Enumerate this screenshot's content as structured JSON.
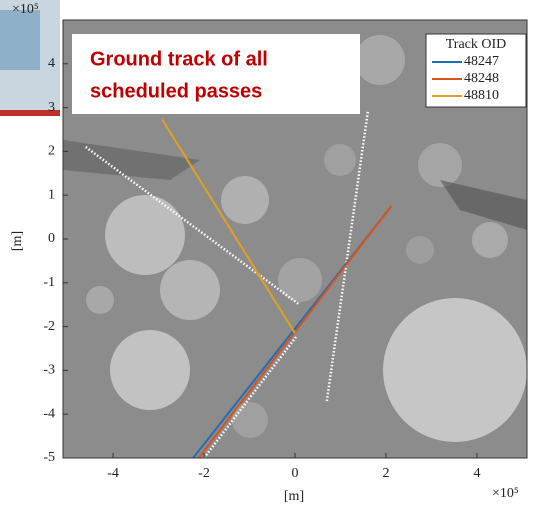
{
  "chart_data": {
    "type": "line",
    "annotation": [
      "Ground track of all",
      "scheduled passes"
    ],
    "x_multiplier": "×10⁵",
    "y_multiplier": "×10⁵",
    "xlabel": "[m]",
    "ylabel": "[m]",
    "xlim": [
      -5.1,
      5.1
    ],
    "ylim": [
      -5,
      5
    ],
    "xticks": [
      -4,
      -2,
      0,
      2,
      4
    ],
    "yticks": [
      -5,
      -4,
      -3,
      -2,
      -1,
      0,
      1,
      2,
      3,
      4
    ],
    "legend_title": "Track OID",
    "legend_loc": "upper right",
    "series": [
      {
        "name": "48247",
        "color": "#1f6fb8",
        "x": [
          -2.24,
          2.09
        ],
        "y": [
          -5,
          0.71
        ]
      },
      {
        "name": "48248",
        "color": "#d9541a",
        "x": [
          -2.12,
          2.12
        ],
        "y": [
          -5,
          0.76
        ]
      },
      {
        "name": "48810",
        "color": "#e0a020",
        "x": [
          -2.92,
          0
        ],
        "y": [
          2.73,
          -2.15
        ]
      }
    ],
    "other_tracks": [
      {
        "color": "#ffffff",
        "x": [
          -4.6,
          0.1
        ],
        "y": [
          2.1,
          -1.5
        ]
      },
      {
        "color": "#ffffff",
        "x": [
          1.6,
          0.7
        ],
        "y": [
          2.9,
          -3.7
        ]
      },
      {
        "color": "#ffffff",
        "x": [
          -2.0,
          0.05
        ],
        "y": [
          -5,
          -2.2
        ]
      }
    ]
  }
}
